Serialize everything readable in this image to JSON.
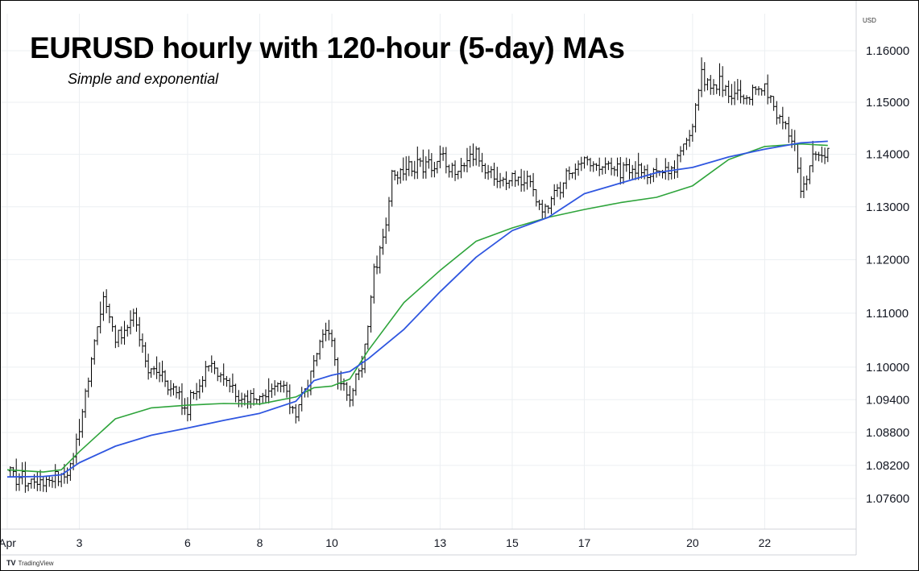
{
  "title": "EURUSD hourly with 120-hour (5-day) MAs",
  "subtitle": "Simple and exponential",
  "currency_label": "USD",
  "brand": {
    "logo": "TV",
    "label": "TradingView"
  },
  "colors": {
    "sma": "#2f56e0",
    "ema": "#2ea43b",
    "candle": "#000000",
    "grid": "#eceff2",
    "axis": "#d0d3d8"
  },
  "chart_data": {
    "type": "line",
    "instrument": "EURUSD",
    "ylabel": "USD",
    "y_scale": "log",
    "ylim": [
      1.07,
      1.166
    ],
    "grid": true,
    "x_tick_labels": [
      "Apr",
      "3",
      "6",
      "8",
      "10",
      "13",
      "15",
      "17",
      "20",
      "22"
    ],
    "y_tick_labels": [
      "1.16000",
      "1.15000",
      "1.14000",
      "1.13000",
      "1.12000",
      "1.11000",
      "1.10000",
      "1.09400",
      "1.08800",
      "1.08200",
      "1.07600"
    ],
    "y_ticks": [
      1.16,
      1.15,
      1.14,
      1.13,
      1.12,
      1.11,
      1.1,
      1.094,
      1.088,
      1.082,
      1.076
    ],
    "x_range": [
      "2025-04-01",
      "2025-04-24"
    ],
    "x_ticks": [
      "2025-04-01",
      "2025-04-03",
      "2025-04-06",
      "2025-04-08",
      "2025-04-10",
      "2025-04-13",
      "2025-04-15",
      "2025-04-17",
      "2025-04-20",
      "2025-04-22"
    ],
    "series": [
      {
        "kind": "ohlc",
        "points": [
          [
            "2025-04-01",
            1.081
          ],
          [
            "2025-04-01T12",
            1.0795
          ],
          [
            "2025-04-02",
            1.0792
          ],
          [
            "2025-04-02T12",
            1.0798
          ],
          [
            "2025-04-02T18",
            1.0815
          ],
          [
            "2025-04-03",
            1.088
          ],
          [
            "2025-04-03T04",
            1.095
          ],
          [
            "2025-04-03T12",
            1.108
          ],
          [
            "2025-04-03T16",
            1.113
          ],
          [
            "2025-04-04",
            1.1055
          ],
          [
            "2025-04-04T12",
            1.109
          ],
          [
            "2025-04-04T20",
            1.1005
          ],
          [
            "2025-04-06",
            1.093
          ],
          [
            "2025-04-06T12",
            1.1
          ],
          [
            "2025-04-07",
            1.0985
          ],
          [
            "2025-04-07T12",
            1.0935
          ],
          [
            "2025-04-08",
            1.0945
          ],
          [
            "2025-04-08T12",
            1.097
          ],
          [
            "2025-04-09",
            1.092
          ],
          [
            "2025-04-09T12",
            1.1
          ],
          [
            "2025-04-09T20",
            1.108
          ],
          [
            "2025-04-10",
            1.104
          ],
          [
            "2025-04-10T04",
            1.098
          ],
          [
            "2025-04-10T12",
            1.095
          ],
          [
            "2025-04-10T20",
            1.101
          ],
          [
            "2025-04-11",
            1.108
          ],
          [
            "2025-04-11T04",
            1.118
          ],
          [
            "2025-04-11T12",
            1.128
          ],
          [
            "2025-04-11T16",
            1.136
          ],
          [
            "2025-04-13",
            1.139
          ],
          [
            "2025-04-13T12",
            1.1365
          ],
          [
            "2025-04-14",
            1.14
          ],
          [
            "2025-04-14T12",
            1.135
          ],
          [
            "2025-04-15",
            1.136
          ],
          [
            "2025-04-15T12",
            1.1345
          ],
          [
            "2025-04-15T20",
            1.1285
          ],
          [
            "2025-04-16",
            1.1295
          ],
          [
            "2025-04-16T12",
            1.136
          ],
          [
            "2025-04-17",
            1.1385
          ],
          [
            "2025-04-17T12",
            1.138
          ],
          [
            "2025-04-18",
            1.137
          ],
          [
            "2025-04-18T12",
            1.1365
          ],
          [
            "2025-04-19",
            1.137
          ],
          [
            "2025-04-19T12",
            1.138
          ],
          [
            "2025-04-20",
            1.146
          ],
          [
            "2025-04-20T06",
            1.1545
          ],
          [
            "2025-04-20T12",
            1.1535
          ],
          [
            "2025-04-21",
            1.1525
          ],
          [
            "2025-04-21T12",
            1.151
          ],
          [
            "2025-04-22",
            1.153
          ],
          [
            "2025-04-22T06",
            1.149
          ],
          [
            "2025-04-22T12",
            1.1465
          ],
          [
            "2025-04-22T20",
            1.1415
          ],
          [
            "2025-04-23",
            1.133
          ],
          [
            "2025-04-23T06",
            1.138
          ],
          [
            "2025-04-23T12",
            1.1395
          ],
          [
            "2025-04-23T18",
            1.1405
          ]
        ]
      },
      {
        "kind": "sma",
        "points": [
          [
            "2025-04-01",
            1.0799
          ],
          [
            "2025-04-02",
            1.08
          ],
          [
            "2025-04-02T12",
            1.0803
          ],
          [
            "2025-04-03",
            1.0825
          ],
          [
            "2025-04-04",
            1.0855
          ],
          [
            "2025-04-05",
            1.0875
          ],
          [
            "2025-04-06",
            1.0888
          ],
          [
            "2025-04-07",
            1.0902
          ],
          [
            "2025-04-08",
            1.0915
          ],
          [
            "2025-04-09",
            1.0937
          ],
          [
            "2025-04-09T12",
            1.0975
          ],
          [
            "2025-04-10",
            1.0985
          ],
          [
            "2025-04-10T12",
            1.0992
          ],
          [
            "2025-04-11",
            1.1015
          ],
          [
            "2025-04-12",
            1.107
          ],
          [
            "2025-04-13",
            1.114
          ],
          [
            "2025-04-14",
            1.1205
          ],
          [
            "2025-04-15",
            1.1255
          ],
          [
            "2025-04-16",
            1.128
          ],
          [
            "2025-04-17",
            1.1325
          ],
          [
            "2025-04-18",
            1.1345
          ],
          [
            "2025-04-19",
            1.1365
          ],
          [
            "2025-04-20",
            1.1375
          ],
          [
            "2025-04-21",
            1.1395
          ],
          [
            "2025-04-22",
            1.141
          ],
          [
            "2025-04-23",
            1.1422
          ],
          [
            "2025-04-23T18",
            1.1425
          ]
        ]
      },
      {
        "kind": "ema",
        "points": [
          [
            "2025-04-01",
            1.0812
          ],
          [
            "2025-04-02",
            1.0808
          ],
          [
            "2025-04-02T12",
            1.0812
          ],
          [
            "2025-04-03",
            1.0845
          ],
          [
            "2025-04-04",
            1.0905
          ],
          [
            "2025-04-05",
            1.0925
          ],
          [
            "2025-04-06",
            1.093
          ],
          [
            "2025-04-07",
            1.0933
          ],
          [
            "2025-04-08",
            1.0932
          ],
          [
            "2025-04-09",
            1.0945
          ],
          [
            "2025-04-09T12",
            1.0962
          ],
          [
            "2025-04-10",
            1.0965
          ],
          [
            "2025-04-10T12",
            1.0978
          ],
          [
            "2025-04-11",
            1.103
          ],
          [
            "2025-04-12",
            1.112
          ],
          [
            "2025-04-13",
            1.118
          ],
          [
            "2025-04-14",
            1.1235
          ],
          [
            "2025-04-15",
            1.126
          ],
          [
            "2025-04-16",
            1.128
          ],
          [
            "2025-04-17",
            1.1295
          ],
          [
            "2025-04-18",
            1.1308
          ],
          [
            "2025-04-19",
            1.1318
          ],
          [
            "2025-04-20",
            1.134
          ],
          [
            "2025-04-21",
            1.139
          ],
          [
            "2025-04-22",
            1.1415
          ],
          [
            "2025-04-23",
            1.142
          ],
          [
            "2025-04-23T18",
            1.1417
          ]
        ]
      }
    ]
  }
}
